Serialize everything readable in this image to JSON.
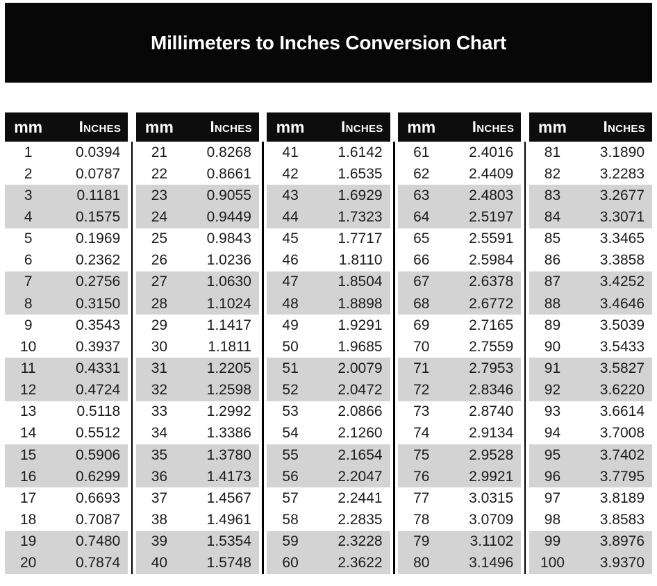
{
  "title": "Millimeters to Inches Conversion Chart",
  "column_headers": {
    "mm": "mm",
    "inches": "Inches"
  },
  "colors": {
    "banner": "#070707",
    "header": "#0d0d0d",
    "header_text": "#ffffff",
    "stripe": "#d3d3d3",
    "body_text": "#1b1b1b",
    "title_text": "#ffffff"
  },
  "tables": [
    {
      "rows": [
        {
          "mm": "1",
          "inches": "0.0394"
        },
        {
          "mm": "2",
          "inches": "0.0787"
        },
        {
          "mm": "3",
          "inches": "0.1181"
        },
        {
          "mm": "4",
          "inches": "0.1575"
        },
        {
          "mm": "5",
          "inches": "0.1969"
        },
        {
          "mm": "6",
          "inches": "0.2362"
        },
        {
          "mm": "7",
          "inches": "0.2756"
        },
        {
          "mm": "8",
          "inches": "0.3150"
        },
        {
          "mm": "9",
          "inches": "0.3543"
        },
        {
          "mm": "10",
          "inches": "0.3937"
        },
        {
          "mm": "11",
          "inches": "0.4331"
        },
        {
          "mm": "12",
          "inches": "0.4724"
        },
        {
          "mm": "13",
          "inches": "0.5118"
        },
        {
          "mm": "14",
          "inches": "0.5512"
        },
        {
          "mm": "15",
          "inches": "0.5906"
        },
        {
          "mm": "16",
          "inches": "0.6299"
        },
        {
          "mm": "17",
          "inches": "0.6693"
        },
        {
          "mm": "18",
          "inches": "0.7087"
        },
        {
          "mm": "19",
          "inches": "0.7480"
        },
        {
          "mm": "20",
          "inches": "0.7874"
        }
      ]
    },
    {
      "rows": [
        {
          "mm": "21",
          "inches": "0.8268"
        },
        {
          "mm": "22",
          "inches": "0.8661"
        },
        {
          "mm": "23",
          "inches": "0.9055"
        },
        {
          "mm": "24",
          "inches": "0.9449"
        },
        {
          "mm": "25",
          "inches": "0.9843"
        },
        {
          "mm": "26",
          "inches": "1.0236"
        },
        {
          "mm": "27",
          "inches": "1.0630"
        },
        {
          "mm": "28",
          "inches": "1.1024"
        },
        {
          "mm": "29",
          "inches": "1.1417"
        },
        {
          "mm": "30",
          "inches": "1.1811"
        },
        {
          "mm": "31",
          "inches": "1.2205"
        },
        {
          "mm": "32",
          "inches": "1.2598"
        },
        {
          "mm": "33",
          "inches": "1.2992"
        },
        {
          "mm": "34",
          "inches": "1.3386"
        },
        {
          "mm": "35",
          "inches": "1.3780"
        },
        {
          "mm": "36",
          "inches": "1.4173"
        },
        {
          "mm": "37",
          "inches": "1.4567"
        },
        {
          "mm": "38",
          "inches": "1.4961"
        },
        {
          "mm": "39",
          "inches": "1.5354"
        },
        {
          "mm": "40",
          "inches": "1.5748"
        }
      ]
    },
    {
      "rows": [
        {
          "mm": "41",
          "inches": "1.6142"
        },
        {
          "mm": "42",
          "inches": "1.6535"
        },
        {
          "mm": "43",
          "inches": "1.6929"
        },
        {
          "mm": "44",
          "inches": "1.7323"
        },
        {
          "mm": "45",
          "inches": "1.7717"
        },
        {
          "mm": "46",
          "inches": "1.8110"
        },
        {
          "mm": "47",
          "inches": "1.8504"
        },
        {
          "mm": "48",
          "inches": "1.8898"
        },
        {
          "mm": "49",
          "inches": "1.9291"
        },
        {
          "mm": "50",
          "inches": "1.9685"
        },
        {
          "mm": "51",
          "inches": "2.0079"
        },
        {
          "mm": "52",
          "inches": "2.0472"
        },
        {
          "mm": "53",
          "inches": "2.0866"
        },
        {
          "mm": "54",
          "inches": "2.1260"
        },
        {
          "mm": "55",
          "inches": "2.1654"
        },
        {
          "mm": "56",
          "inches": "2.2047"
        },
        {
          "mm": "57",
          "inches": "2.2441"
        },
        {
          "mm": "58",
          "inches": "2.2835"
        },
        {
          "mm": "59",
          "inches": "2.3228"
        },
        {
          "mm": "60",
          "inches": "2.3622"
        }
      ]
    },
    {
      "rows": [
        {
          "mm": "61",
          "inches": "2.4016"
        },
        {
          "mm": "62",
          "inches": "2.4409"
        },
        {
          "mm": "63",
          "inches": "2.4803"
        },
        {
          "mm": "64",
          "inches": "2.5197"
        },
        {
          "mm": "65",
          "inches": "2.5591"
        },
        {
          "mm": "66",
          "inches": "2.5984"
        },
        {
          "mm": "67",
          "inches": "2.6378"
        },
        {
          "mm": "68",
          "inches": "2.6772"
        },
        {
          "mm": "69",
          "inches": "2.7165"
        },
        {
          "mm": "70",
          "inches": "2.7559"
        },
        {
          "mm": "71",
          "inches": "2.7953"
        },
        {
          "mm": "72",
          "inches": "2.8346"
        },
        {
          "mm": "73",
          "inches": "2.8740"
        },
        {
          "mm": "74",
          "inches": "2.9134"
        },
        {
          "mm": "75",
          "inches": "2.9528"
        },
        {
          "mm": "76",
          "inches": "2.9921"
        },
        {
          "mm": "77",
          "inches": "3.0315"
        },
        {
          "mm": "78",
          "inches": "3.0709"
        },
        {
          "mm": "79",
          "inches": "3.1102"
        },
        {
          "mm": "80",
          "inches": "3.1496"
        }
      ]
    },
    {
      "rows": [
        {
          "mm": "81",
          "inches": "3.1890"
        },
        {
          "mm": "82",
          "inches": "3.2283"
        },
        {
          "mm": "83",
          "inches": "3.2677"
        },
        {
          "mm": "84",
          "inches": "3.3071"
        },
        {
          "mm": "85",
          "inches": "3.3465"
        },
        {
          "mm": "86",
          "inches": "3.3858"
        },
        {
          "mm": "87",
          "inches": "3.4252"
        },
        {
          "mm": "88",
          "inches": "3.4646"
        },
        {
          "mm": "89",
          "inches": "3.5039"
        },
        {
          "mm": "90",
          "inches": "3.5433"
        },
        {
          "mm": "91",
          "inches": "3.5827"
        },
        {
          "mm": "92",
          "inches": "3.6220"
        },
        {
          "mm": "93",
          "inches": "3.6614"
        },
        {
          "mm": "94",
          "inches": "3.7008"
        },
        {
          "mm": "95",
          "inches": "3.7402"
        },
        {
          "mm": "96",
          "inches": "3.7795"
        },
        {
          "mm": "97",
          "inches": "3.8189"
        },
        {
          "mm": "98",
          "inches": "3.8583"
        },
        {
          "mm": "99",
          "inches": "3.8976"
        },
        {
          "mm": "100",
          "inches": "3.9370"
        }
      ]
    }
  ]
}
